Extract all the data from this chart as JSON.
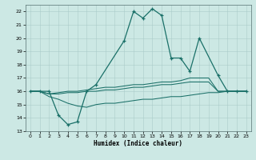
{
  "title": "",
  "xlabel": "Humidex (Indice chaleur)",
  "xlim": [
    -0.5,
    23.5
  ],
  "ylim": [
    13,
    22.5
  ],
  "yticks": [
    13,
    14,
    15,
    16,
    17,
    18,
    19,
    20,
    21,
    22
  ],
  "xticks": [
    0,
    1,
    2,
    3,
    4,
    5,
    6,
    7,
    8,
    9,
    10,
    11,
    12,
    13,
    14,
    15,
    16,
    17,
    18,
    19,
    20,
    21,
    22,
    23
  ],
  "bg_color": "#cce8e4",
  "grid_color": "#aaccca",
  "line_color": "#1a7068",
  "lines": [
    {
      "x": [
        0,
        1,
        2,
        3,
        4,
        5,
        6,
        7,
        10,
        11,
        12,
        13,
        14,
        15,
        16,
        17,
        18,
        20,
        21,
        22,
        23
      ],
      "y": [
        16,
        16,
        16,
        14.2,
        13.5,
        13.7,
        16.0,
        16.5,
        19.8,
        22.0,
        21.5,
        22.2,
        21.7,
        18.5,
        18.5,
        17.5,
        20.0,
        17.2,
        16.0,
        16.0,
        16.0
      ],
      "marker": true
    },
    {
      "x": [
        0,
        1,
        2,
        3,
        4,
        5,
        6,
        7,
        8,
        9,
        10,
        11,
        12,
        13,
        14,
        15,
        16,
        17,
        18,
        19,
        20,
        21,
        22,
        23
      ],
      "y": [
        16.0,
        16.0,
        15.8,
        15.9,
        16.0,
        16.0,
        16.1,
        16.2,
        16.3,
        16.3,
        16.4,
        16.5,
        16.5,
        16.6,
        16.7,
        16.7,
        16.8,
        17.0,
        17.0,
        17.0,
        16.0,
        16.0,
        16.0,
        16.0
      ],
      "marker": false
    },
    {
      "x": [
        0,
        1,
        2,
        3,
        4,
        5,
        6,
        7,
        8,
        9,
        10,
        11,
        12,
        13,
        14,
        15,
        16,
        17,
        18,
        19,
        20,
        21,
        22,
        23
      ],
      "y": [
        16.0,
        16.0,
        15.8,
        15.8,
        15.9,
        15.9,
        16.0,
        16.0,
        16.1,
        16.1,
        16.2,
        16.3,
        16.3,
        16.4,
        16.5,
        16.5,
        16.6,
        16.7,
        16.7,
        16.7,
        16.0,
        16.0,
        16.0,
        16.0
      ],
      "marker": false
    },
    {
      "x": [
        0,
        1,
        2,
        3,
        4,
        5,
        6,
        7,
        8,
        9,
        10,
        11,
        12,
        13,
        14,
        15,
        16,
        17,
        18,
        19,
        20,
        21,
        22,
        23
      ],
      "y": [
        16.0,
        16.0,
        15.6,
        15.4,
        15.1,
        14.9,
        14.8,
        15.0,
        15.1,
        15.1,
        15.2,
        15.3,
        15.4,
        15.4,
        15.5,
        15.6,
        15.6,
        15.7,
        15.8,
        15.9,
        15.9,
        16.0,
        16.0,
        16.0
      ],
      "marker": false
    }
  ]
}
